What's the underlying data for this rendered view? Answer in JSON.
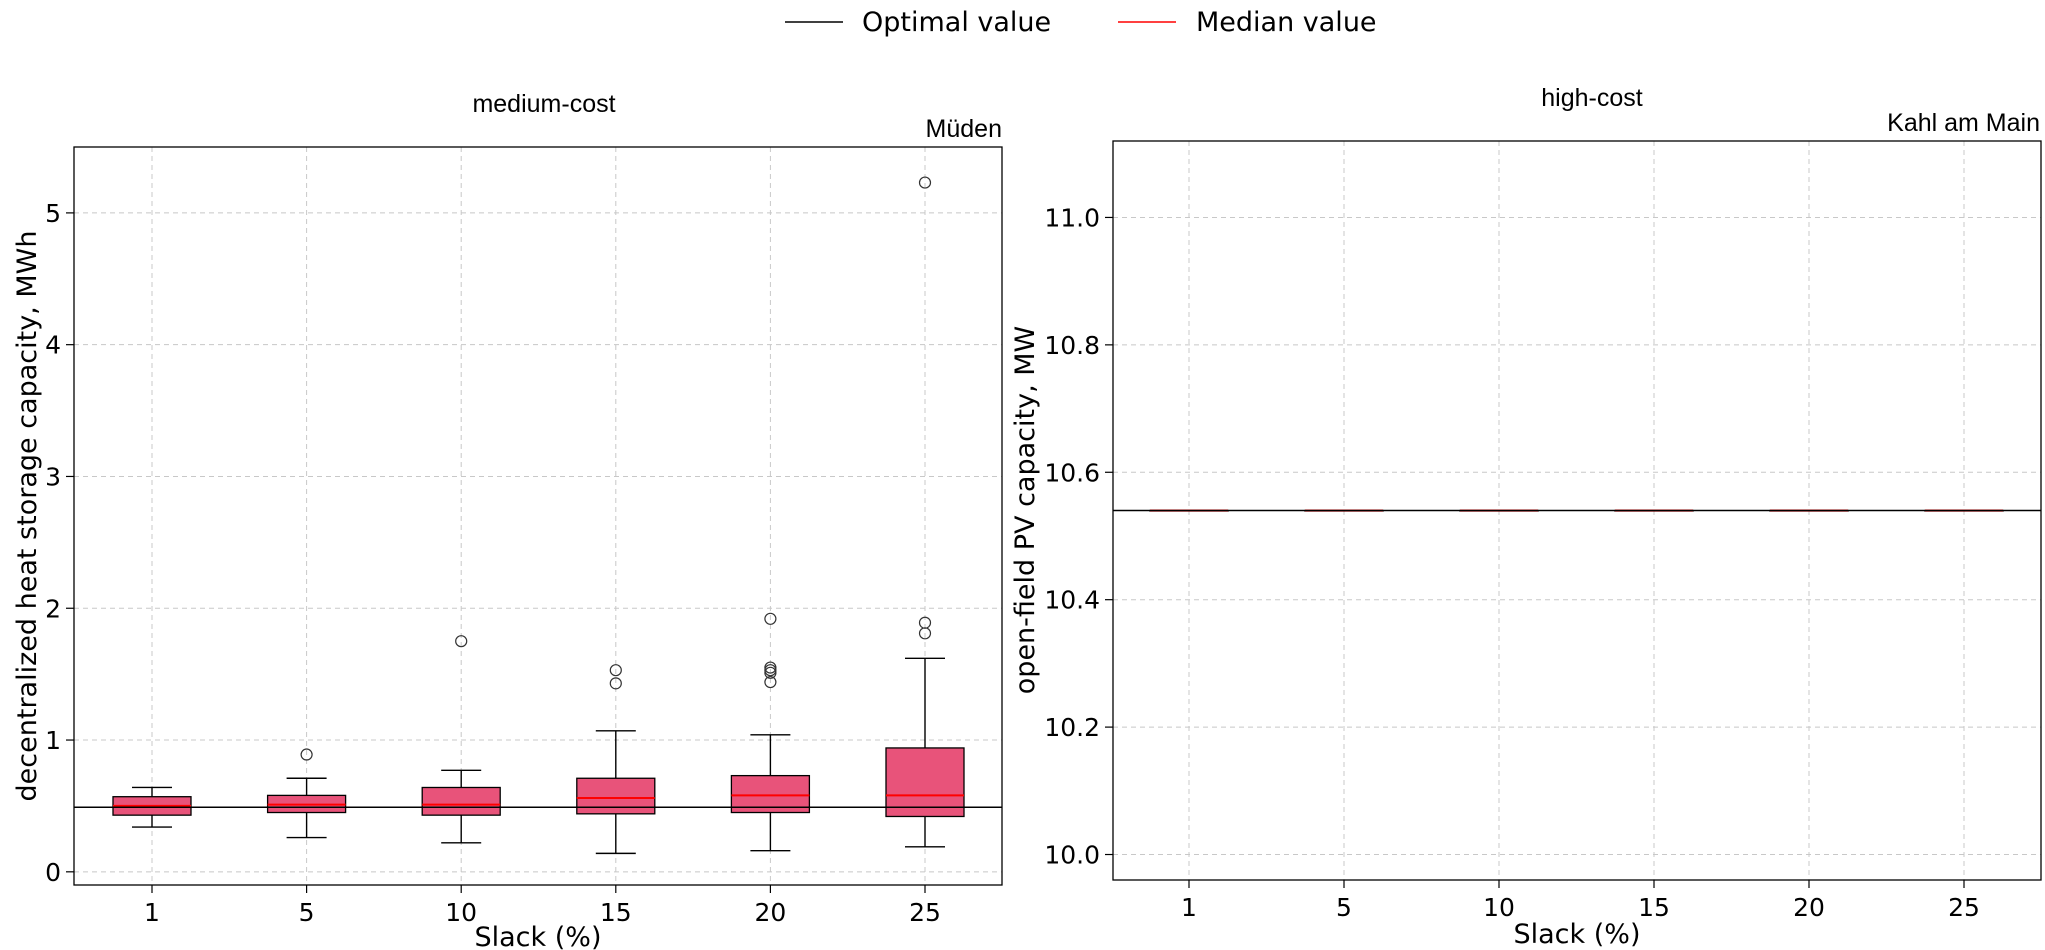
{
  "legend": {
    "items": [
      {
        "label": "Optimal value",
        "color": "#000000"
      },
      {
        "label": "Median value",
        "color": "#ff0000"
      }
    ]
  },
  "chart_data": [
    {
      "type": "box",
      "title": "medium-cost",
      "location": "Müden",
      "xlabel": "Slack (%)",
      "ylabel": "decentralized heat storage capacity, MWh",
      "categories": [
        "1",
        "5",
        "10",
        "15",
        "20",
        "25"
      ],
      "ylim": [
        -0.1,
        5.5
      ],
      "yticks": [
        0,
        1,
        2,
        3,
        4,
        5
      ],
      "ytick_labels": [
        "0",
        "1",
        "2",
        "3",
        "4",
        "5"
      ],
      "grid": true,
      "box_color": "#e8537a",
      "optimal_value": 0.49,
      "boxes": [
        {
          "slack": "1",
          "whislo": 0.34,
          "q1": 0.43,
          "med": 0.5,
          "q3": 0.57,
          "whishi": 0.64,
          "fliers": []
        },
        {
          "slack": "5",
          "whislo": 0.26,
          "q1": 0.45,
          "med": 0.51,
          "q3": 0.58,
          "whishi": 0.71,
          "fliers": [
            0.89
          ]
        },
        {
          "slack": "10",
          "whislo": 0.22,
          "q1": 0.43,
          "med": 0.51,
          "q3": 0.64,
          "whishi": 0.77,
          "fliers": [
            1.75
          ]
        },
        {
          "slack": "15",
          "whislo": 0.14,
          "q1": 0.44,
          "med": 0.56,
          "q3": 0.71,
          "whishi": 1.07,
          "fliers": [
            1.43,
            1.53
          ]
        },
        {
          "slack": "20",
          "whislo": 0.16,
          "q1": 0.45,
          "med": 0.58,
          "q3": 0.73,
          "whishi": 1.04,
          "fliers": [
            1.44,
            1.51,
            1.53,
            1.55,
            1.92
          ]
        },
        {
          "slack": "25",
          "whislo": 0.19,
          "q1": 0.42,
          "med": 0.58,
          "q3": 0.94,
          "whishi": 1.62,
          "fliers": [
            1.81,
            1.89,
            5.23
          ]
        }
      ]
    },
    {
      "type": "box",
      "title": "high-cost",
      "location": "Kahl am Main",
      "xlabel": "Slack (%)",
      "ylabel": "open-field PV capacity, MW",
      "categories": [
        "1",
        "5",
        "10",
        "15",
        "20",
        "25"
      ],
      "ylim": [
        9.96,
        11.12
      ],
      "yticks": [
        10.0,
        10.2,
        10.4,
        10.6,
        10.8,
        11.0
      ],
      "ytick_labels": [
        "10.0",
        "10.2",
        "10.4",
        "10.6",
        "10.8",
        "11.0"
      ],
      "grid": true,
      "box_color": "#e8537a",
      "optimal_value": 10.54,
      "boxes": [
        {
          "slack": "1",
          "whislo": 10.54,
          "q1": 10.54,
          "med": 10.54,
          "q3": 10.54,
          "whishi": 10.54,
          "fliers": []
        },
        {
          "slack": "5",
          "whislo": 10.54,
          "q1": 10.54,
          "med": 10.54,
          "q3": 10.54,
          "whishi": 10.54,
          "fliers": []
        },
        {
          "slack": "10",
          "whislo": 10.54,
          "q1": 10.54,
          "med": 10.54,
          "q3": 10.54,
          "whishi": 10.54,
          "fliers": []
        },
        {
          "slack": "15",
          "whislo": 10.54,
          "q1": 10.54,
          "med": 10.54,
          "q3": 10.54,
          "whishi": 10.54,
          "fliers": []
        },
        {
          "slack": "20",
          "whislo": 10.54,
          "q1": 10.54,
          "med": 10.54,
          "q3": 10.54,
          "whishi": 10.54,
          "fliers": []
        },
        {
          "slack": "25",
          "whislo": 10.54,
          "q1": 10.54,
          "med": 10.54,
          "q3": 10.54,
          "whishi": 10.54,
          "fliers": []
        }
      ]
    }
  ]
}
